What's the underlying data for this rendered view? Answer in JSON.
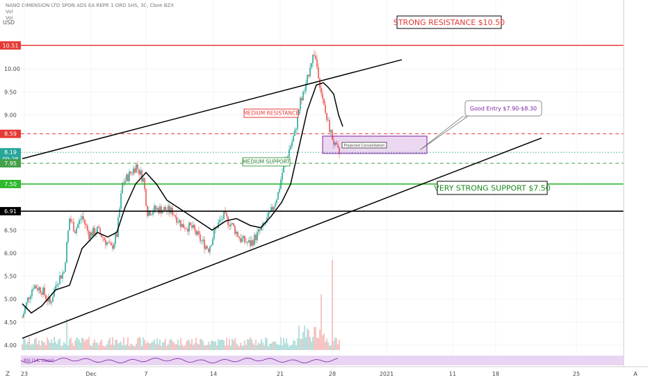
{
  "header": {
    "symbol_line": "NANO DIMENSION LTD SPON ADS EA REPR 1 ORD SHS, 30, Cboe BZX",
    "vol_line_1": "Vol",
    "vol_line_2": "Vol",
    "currency": "USD"
  },
  "indicator_label": "RSI (14, close)",
  "chart_data": {
    "type": "candlestick",
    "yticks": [
      "10.00",
      "9.50",
      "9.00",
      "6.50",
      "6.00",
      "5.50",
      "5.00",
      "4.50",
      "4.00"
    ],
    "ylim": [
      3.6,
      10.75
    ],
    "xlabels": [
      "23",
      "Dec",
      "7",
      "14",
      "21",
      "28",
      "2021",
      "11",
      "18",
      "25",
      "A"
    ],
    "levels": [
      {
        "label": "10.51",
        "value": 10.51,
        "color": "#e53935",
        "style": "solid"
      },
      {
        "label": "8.59",
        "value": 8.59,
        "color": "#e53935",
        "style": "dashed"
      },
      {
        "label": "8.19",
        "value": 8.19,
        "color": "#26a69a",
        "style": "dotted"
      },
      {
        "label": "09:28",
        "value": 8.04,
        "color": "#26a69a",
        "style": "none"
      },
      {
        "label": "7.95",
        "value": 7.95,
        "color": "#43a047",
        "style": "dashed"
      },
      {
        "label": "7.50",
        "value": 7.5,
        "color": "#2eb82e",
        "style": "solid"
      },
      {
        "label": "6.91",
        "value": 6.91,
        "color": "#000000",
        "style": "solid"
      }
    ],
    "annotations": {
      "strong_resistance": "STRONG RESISTANCE $10.50",
      "medium_resistance": "MEDIUM RESISTANCE",
      "medium_support": "MEDIUM SUPPORT",
      "very_strong_support": "VERY STRONG SUPPORT $7.50",
      "good_entry": "Good Entry $7.90-$8.30",
      "projected": "Projected Consolidation"
    },
    "colors": {
      "up": "#26a69a",
      "down": "#ef5350",
      "rsi": "#7b1fa2"
    }
  }
}
